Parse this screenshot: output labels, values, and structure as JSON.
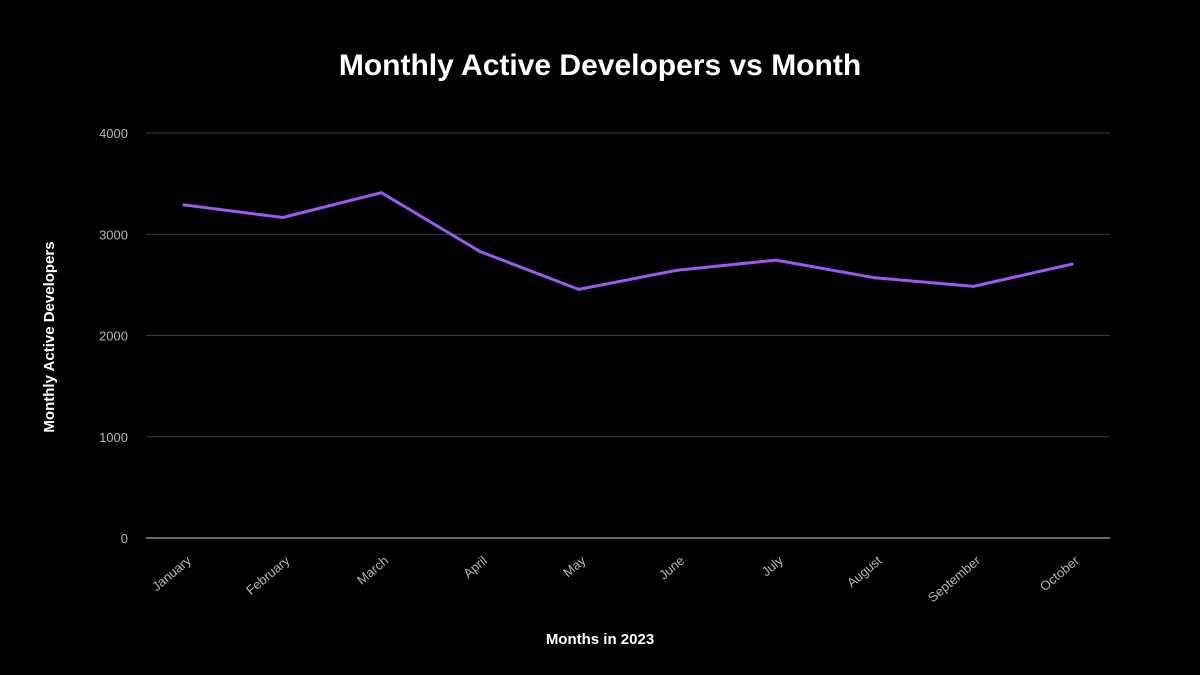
{
  "chart_data": {
    "type": "line",
    "title": "Monthly Active Developers vs Month",
    "xlabel": "Months in 2023",
    "ylabel": "Monthly Active Developers",
    "categories": [
      "January",
      "February",
      "March",
      "April",
      "May",
      "June",
      "July",
      "August",
      "September",
      "October"
    ],
    "series": [
      {
        "values": [
          3290,
          3165,
          3410,
          2830,
          2455,
          2645,
          2745,
          2570,
          2485,
          2705
        ]
      }
    ],
    "ylim": [
      0,
      4000
    ],
    "yticks": [
      0,
      1000,
      2000,
      3000,
      4000
    ],
    "grid": true,
    "legend": "none",
    "colors": {
      "background": "#000000",
      "line": "#9b59f0",
      "grid": "#3a3a3a",
      "text": "#ffffff",
      "tick_text": "#b4b4b4"
    }
  }
}
